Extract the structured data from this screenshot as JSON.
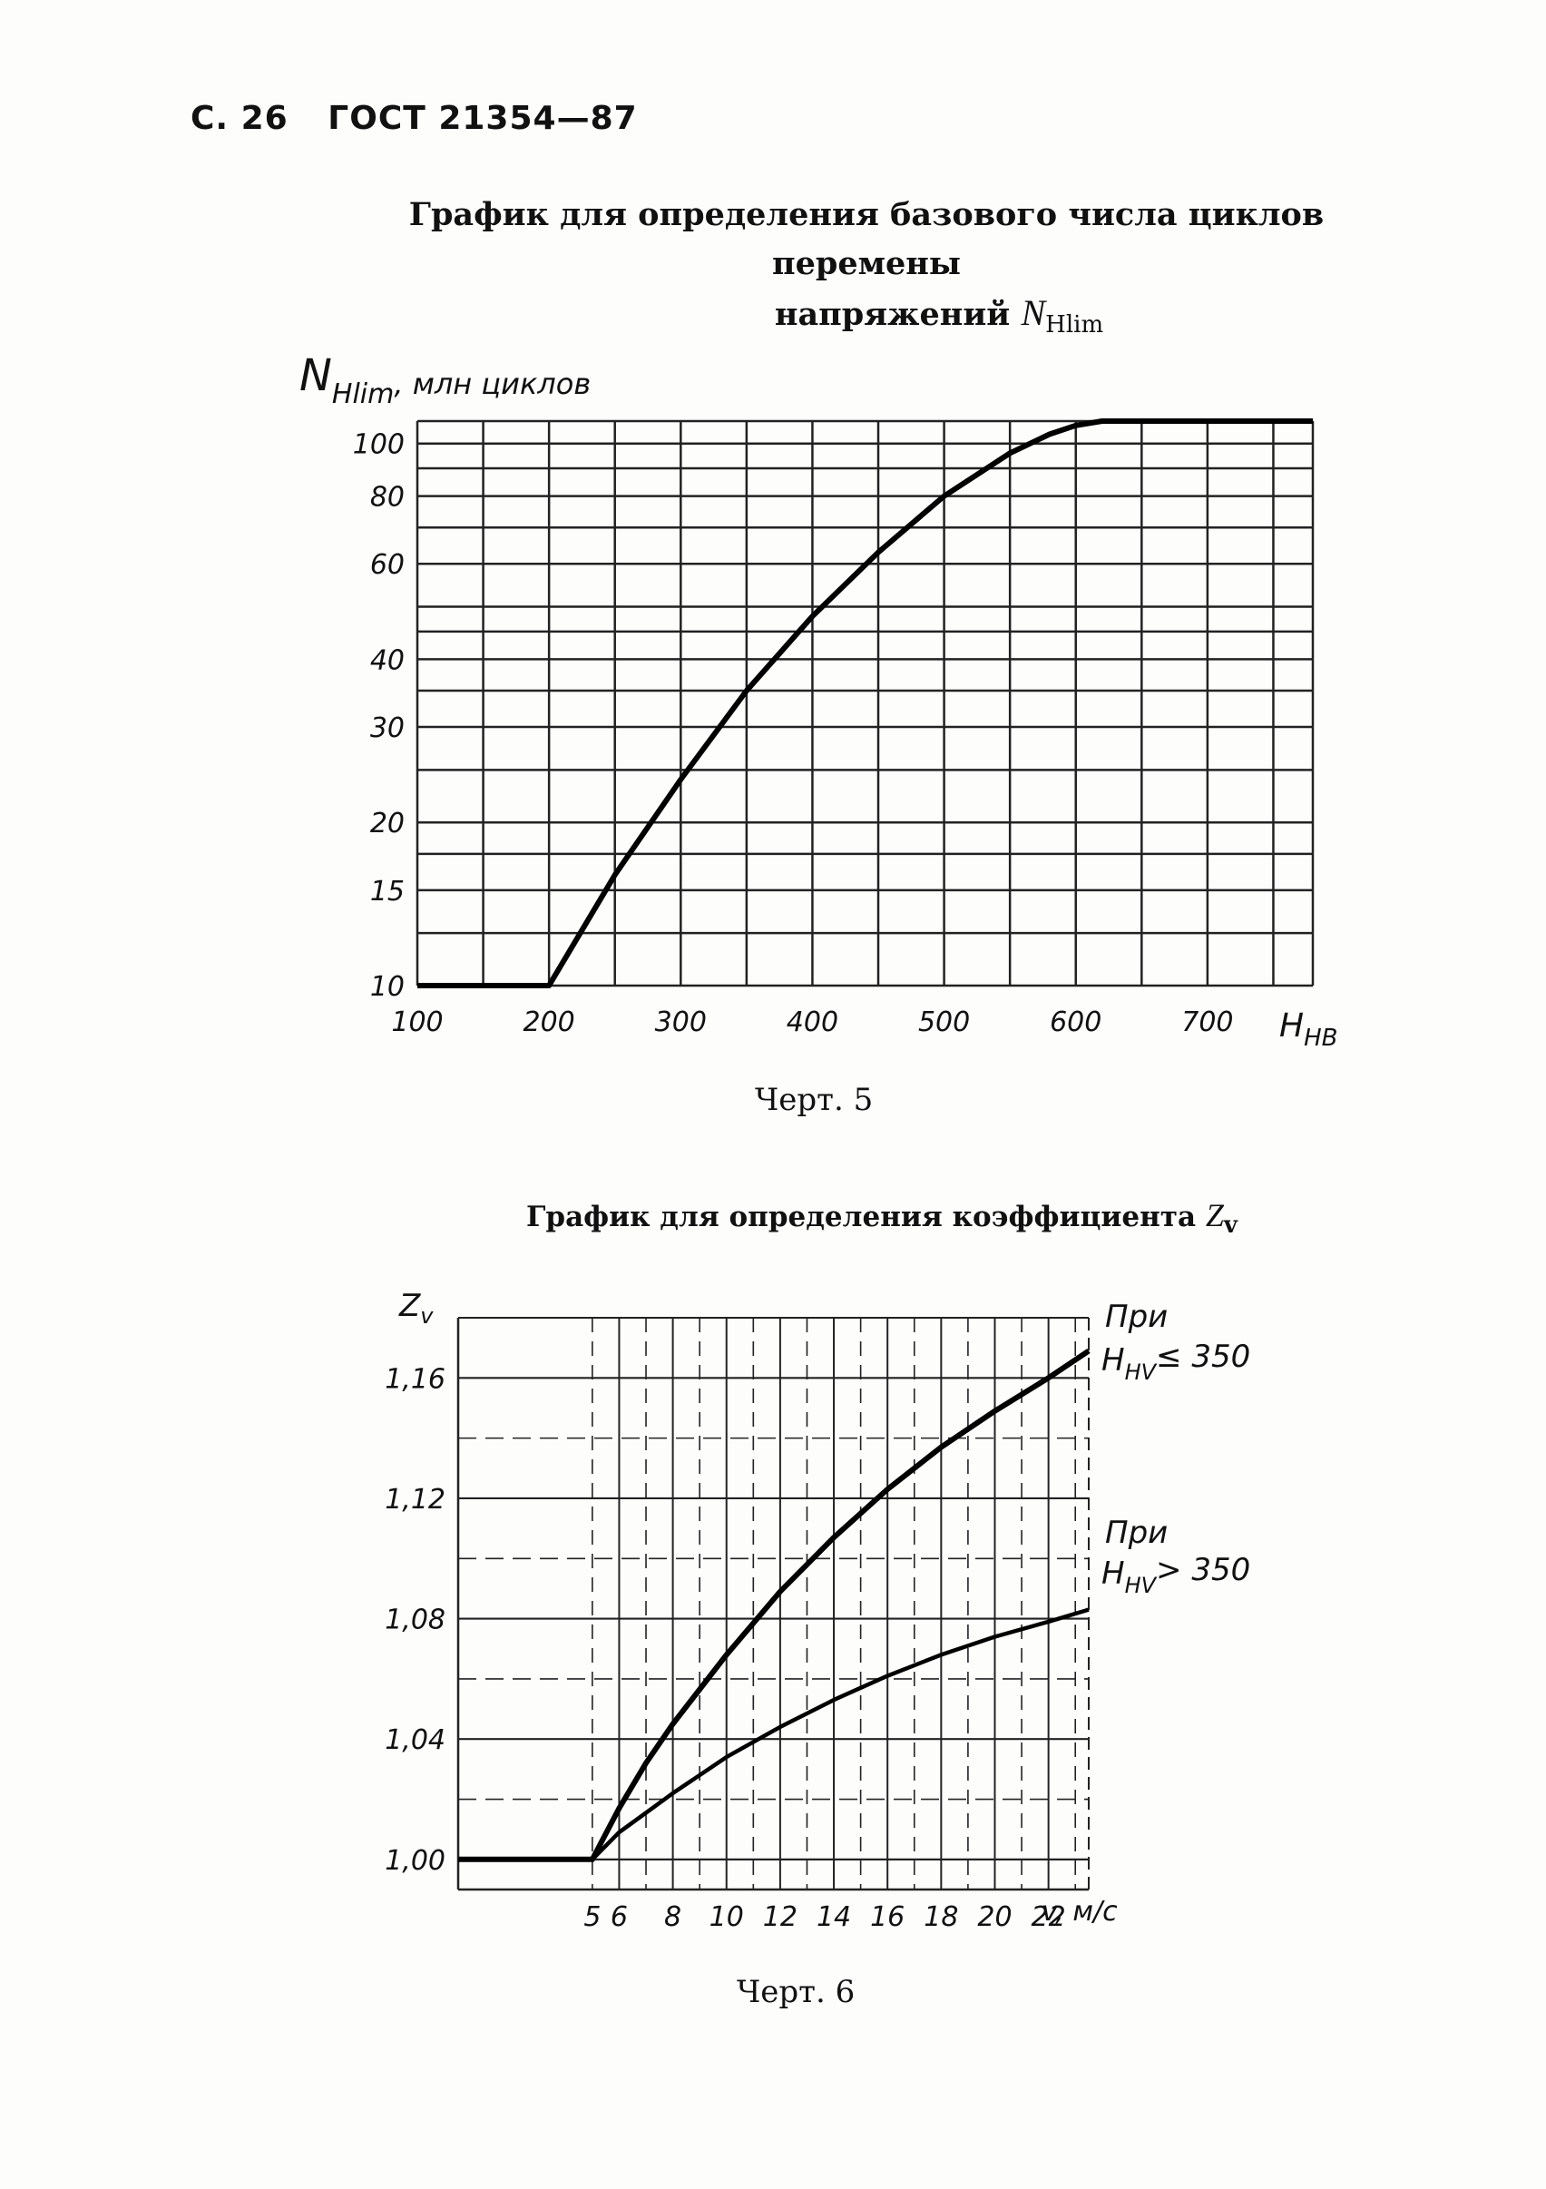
{
  "header": {
    "page": "С. 26",
    "standard": "ГОСТ 21354—87"
  },
  "chart_data": [
    {
      "type": "line",
      "title_line1": "График для определения базового числа циклов перемены",
      "title_line2": "напряжений",
      "title_symbol": "N",
      "title_symbol_sub": "Hlim",
      "ylabel_symbol": "N",
      "ylabel_sub": "Hlim",
      "ylabel_text": ", млн циклов",
      "xlabel_symbol": "H",
      "xlabel_sub": "HB",
      "yscale": "log",
      "xlim": [
        100,
        780
      ],
      "ylim": [
        10,
        110
      ],
      "x_ticks": [
        100,
        200,
        300,
        400,
        500,
        600,
        700
      ],
      "x_tick_labels": [
        "100",
        "200",
        "300",
        "400",
        "500",
        "600",
        "700"
      ],
      "y_ticks": [
        10,
        15,
        20,
        30,
        40,
        60,
        80,
        100
      ],
      "y_tick_labels": [
        "10",
        "15",
        "20",
        "30",
        "40",
        "60",
        "80",
        "100"
      ],
      "y_grid": [
        10,
        12.5,
        15,
        17.5,
        20,
        25,
        30,
        35,
        40,
        45,
        50,
        60,
        70,
        80,
        90,
        100,
        110
      ],
      "x_grid": [
        100,
        150,
        200,
        250,
        300,
        350,
        400,
        450,
        500,
        550,
        600,
        650,
        700,
        750
      ],
      "grid": true,
      "series": [
        {
          "x": [
            100,
            200,
            250,
            300,
            350,
            400,
            450,
            500,
            550,
            580,
            600,
            620,
            780
          ],
          "y": [
            10,
            10,
            16,
            24,
            35,
            48,
            63,
            80,
            96,
            104,
            108,
            110,
            110
          ]
        }
      ],
      "caption": "Черт. 5"
    },
    {
      "type": "line",
      "title": "График для определения коэффициента",
      "title_symbol": "Z",
      "title_symbol_sub": "v",
      "ylabel_symbol": "Z",
      "ylabel_sub": "v",
      "xlabel": "v, м/с",
      "xlim": [
        0,
        23.5
      ],
      "ylim": [
        0.99,
        1.18
      ],
      "x_ticks": [
        5,
        6,
        8,
        10,
        12,
        14,
        16,
        18,
        20,
        22
      ],
      "x_tick_labels": [
        "5",
        "6",
        "8",
        "10",
        "12",
        "14",
        "16",
        "18",
        "20",
        "22"
      ],
      "y_ticks": [
        1.0,
        1.04,
        1.08,
        1.12,
        1.16
      ],
      "y_tick_labels": [
        "1,00",
        "1,04",
        "1,08",
        "1,12",
        "1,16"
      ],
      "grid": true,
      "series": [
        {
          "name_line1": "При",
          "name_symbol": "H",
          "name_sub": "HV",
          "name_cond": "≤ 350",
          "x": [
            0,
            5,
            6,
            7,
            8,
            10,
            12,
            14,
            16,
            18,
            20,
            22,
            23.5
          ],
          "y": [
            1.0,
            1.0,
            1.017,
            1.032,
            1.045,
            1.068,
            1.089,
            1.107,
            1.123,
            1.137,
            1.149,
            1.16,
            1.169
          ]
        },
        {
          "name_line1": "При",
          "name_symbol": "H",
          "name_sub": "HV",
          "name_cond": "> 350",
          "x": [
            0,
            5,
            6,
            8,
            10,
            12,
            14,
            16,
            18,
            20,
            22,
            23.5
          ],
          "y": [
            1.0,
            1.0,
            1.009,
            1.022,
            1.034,
            1.044,
            1.053,
            1.061,
            1.068,
            1.074,
            1.079,
            1.083
          ]
        }
      ],
      "caption": "Черт. 6"
    }
  ]
}
